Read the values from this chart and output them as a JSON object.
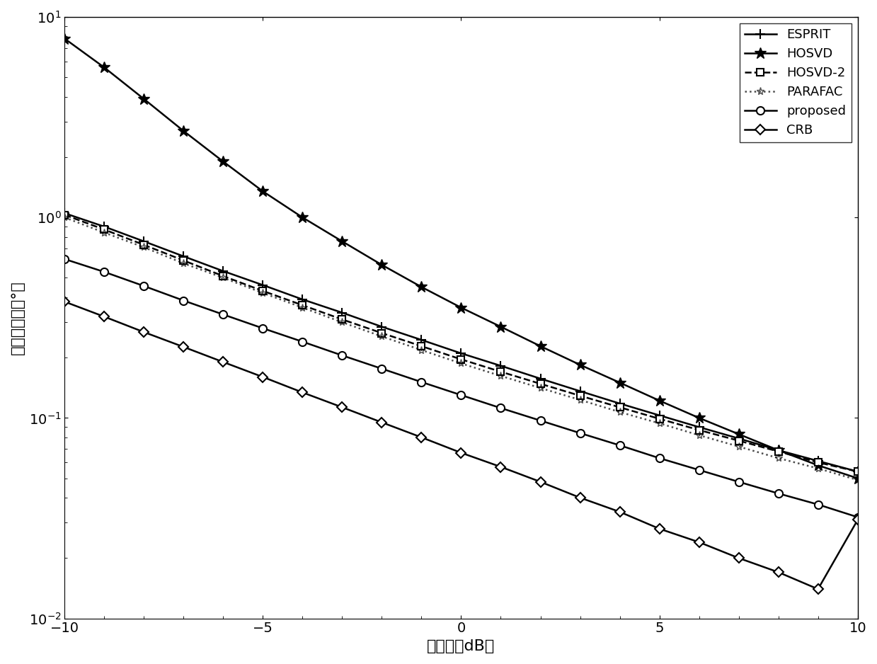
{
  "title": "",
  "xlabel": "信噪比（dB）",
  "ylabel": "均方根误差（°）",
  "xlim": [
    -10,
    10
  ],
  "ylim_log": [
    0.01,
    10
  ],
  "x": [
    -10,
    -9,
    -8,
    -7,
    -6,
    -5,
    -4,
    -3,
    -2,
    -1,
    0,
    1,
    2,
    3,
    4,
    5,
    6,
    7,
    8,
    9,
    10
  ],
  "ESPRIT": [
    1.05,
    0.9,
    0.76,
    0.64,
    0.54,
    0.46,
    0.39,
    0.335,
    0.285,
    0.245,
    0.21,
    0.182,
    0.157,
    0.136,
    0.118,
    0.103,
    0.09,
    0.079,
    0.069,
    0.061,
    0.054
  ],
  "HOSVD": [
    7.8,
    5.6,
    3.9,
    2.7,
    1.9,
    1.35,
    1.0,
    0.76,
    0.58,
    0.45,
    0.355,
    0.285,
    0.228,
    0.184,
    0.15,
    0.122,
    0.1,
    0.083,
    0.069,
    0.058,
    0.05
  ],
  "HOSVD2": [
    1.03,
    0.87,
    0.73,
    0.61,
    0.51,
    0.43,
    0.365,
    0.31,
    0.265,
    0.228,
    0.196,
    0.17,
    0.148,
    0.129,
    0.113,
    0.099,
    0.087,
    0.077,
    0.068,
    0.06,
    0.054
  ],
  "PARAFAC": [
    1.0,
    0.84,
    0.71,
    0.59,
    0.5,
    0.42,
    0.355,
    0.3,
    0.255,
    0.218,
    0.187,
    0.162,
    0.141,
    0.123,
    0.107,
    0.094,
    0.082,
    0.072,
    0.063,
    0.056,
    0.049
  ],
  "proposed": [
    0.62,
    0.535,
    0.455,
    0.385,
    0.328,
    0.28,
    0.24,
    0.205,
    0.176,
    0.151,
    0.13,
    0.112,
    0.097,
    0.084,
    0.073,
    0.063,
    0.055,
    0.048,
    0.042,
    0.037,
    0.032
  ],
  "CRB": [
    0.38,
    0.32,
    0.268,
    0.226,
    0.19,
    0.16,
    0.134,
    0.113,
    0.095,
    0.08,
    0.067,
    0.057,
    0.048,
    0.04,
    0.034,
    0.028,
    0.024,
    0.02,
    0.017,
    0.014,
    0.031
  ],
  "line_color": "#000000",
  "background_color": "#ffffff",
  "fontsize_label": 16,
  "fontsize_tick": 14,
  "fontsize_legend": 13
}
